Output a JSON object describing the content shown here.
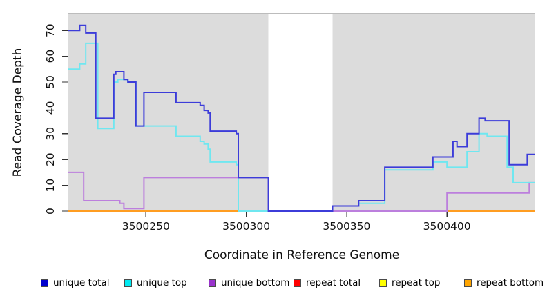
{
  "chart_data": {
    "type": "line",
    "subtype": "step-after",
    "title": "",
    "xlabel": "Coordinate in Reference Genome",
    "ylabel": "Read Coverage Depth",
    "x_range": [
      3500211,
      3500444
    ],
    "ylim": [
      0,
      76.5
    ],
    "x_ticks": [
      3500250,
      3500300,
      3500350,
      3500400
    ],
    "y_ticks": [
      0,
      10,
      20,
      30,
      40,
      50,
      60,
      70
    ],
    "grid": false,
    "legend_position": "bottom",
    "covered_region_fill": "#dcdcdc",
    "covered_region_border": "#a6a6a6",
    "covered_regions": [
      [
        3500211,
        3500311
      ],
      [
        3500343,
        3500444
      ]
    ],
    "gap_region": [
      3500311,
      3500343
    ],
    "series": [
      {
        "name": "repeat total",
        "legend_color": "#ff0000",
        "line_color": "#d64a4a",
        "points": [
          [
            3500211,
            0
          ]
        ]
      },
      {
        "name": "repeat top",
        "legend_color": "#ffff00",
        "line_color": "#f2f211",
        "points": [
          [
            3500211,
            0
          ]
        ]
      },
      {
        "name": "repeat bottom",
        "legend_color": "#ffa500",
        "line_color": "#ff9d21",
        "points": [
          [
            3500211,
            0
          ]
        ]
      },
      {
        "name": "unique bottom",
        "legend_color": "#9932cc",
        "line_color": "#bc7fdd",
        "points": [
          [
            3500211,
            15
          ],
          [
            3500219,
            4
          ],
          [
            3500237,
            3
          ],
          [
            3500239,
            1
          ],
          [
            3500249,
            13
          ],
          [
            3500311,
            0
          ],
          [
            3500400,
            7
          ],
          [
            3500441,
            11
          ]
        ]
      },
      {
        "name": "unique top",
        "legend_color": "#00eaf2",
        "line_color": "#6fe7f0",
        "points": [
          [
            3500211,
            55
          ],
          [
            3500217,
            57
          ],
          [
            3500220,
            65
          ],
          [
            3500226,
            32
          ],
          [
            3500234,
            50
          ],
          [
            3500236,
            51
          ],
          [
            3500241,
            50
          ],
          [
            3500245,
            33
          ],
          [
            3500265,
            29
          ],
          [
            3500277,
            27
          ],
          [
            3500279,
            26
          ],
          [
            3500281,
            24
          ],
          [
            3500282,
            19
          ],
          [
            3500295,
            18
          ],
          [
            3500296,
            0
          ],
          [
            3500343,
            2
          ],
          [
            3500356,
            3
          ],
          [
            3500369,
            16
          ],
          [
            3500393,
            19
          ],
          [
            3500400,
            17
          ],
          [
            3500410,
            23
          ],
          [
            3500416,
            30
          ],
          [
            3500420,
            29
          ],
          [
            3500430,
            17
          ],
          [
            3500433,
            11
          ]
        ]
      },
      {
        "name": "unique total",
        "legend_color": "#0000cd",
        "line_color": "#3c3cd9",
        "points": [
          [
            3500211,
            70
          ],
          [
            3500217,
            72
          ],
          [
            3500220,
            69
          ],
          [
            3500225,
            36
          ],
          [
            3500234,
            53
          ],
          [
            3500235,
            54
          ],
          [
            3500239,
            51
          ],
          [
            3500241,
            50
          ],
          [
            3500245,
            33
          ],
          [
            3500249,
            46
          ],
          [
            3500265,
            42
          ],
          [
            3500277,
            41
          ],
          [
            3500279,
            39
          ],
          [
            3500281,
            38
          ],
          [
            3500282,
            31
          ],
          [
            3500295,
            30
          ],
          [
            3500296,
            13
          ],
          [
            3500311,
            0
          ],
          [
            3500343,
            2
          ],
          [
            3500356,
            4
          ],
          [
            3500369,
            17
          ],
          [
            3500393,
            21
          ],
          [
            3500403,
            27
          ],
          [
            3500405,
            25
          ],
          [
            3500410,
            30
          ],
          [
            3500416,
            36
          ],
          [
            3500419,
            35
          ],
          [
            3500431,
            18
          ],
          [
            3500440,
            22
          ]
        ]
      }
    ]
  },
  "legend": {
    "items": [
      {
        "label": "unique total",
        "color": "#0000cd"
      },
      {
        "label": "unique top",
        "color": "#00eaf2"
      },
      {
        "label": "unique bottom",
        "color": "#9932cc"
      },
      {
        "label": "repeat total",
        "color": "#ff0000"
      },
      {
        "label": "repeat top",
        "color": "#ffff00"
      },
      {
        "label": "repeat bottom",
        "color": "#ffa500"
      }
    ]
  }
}
